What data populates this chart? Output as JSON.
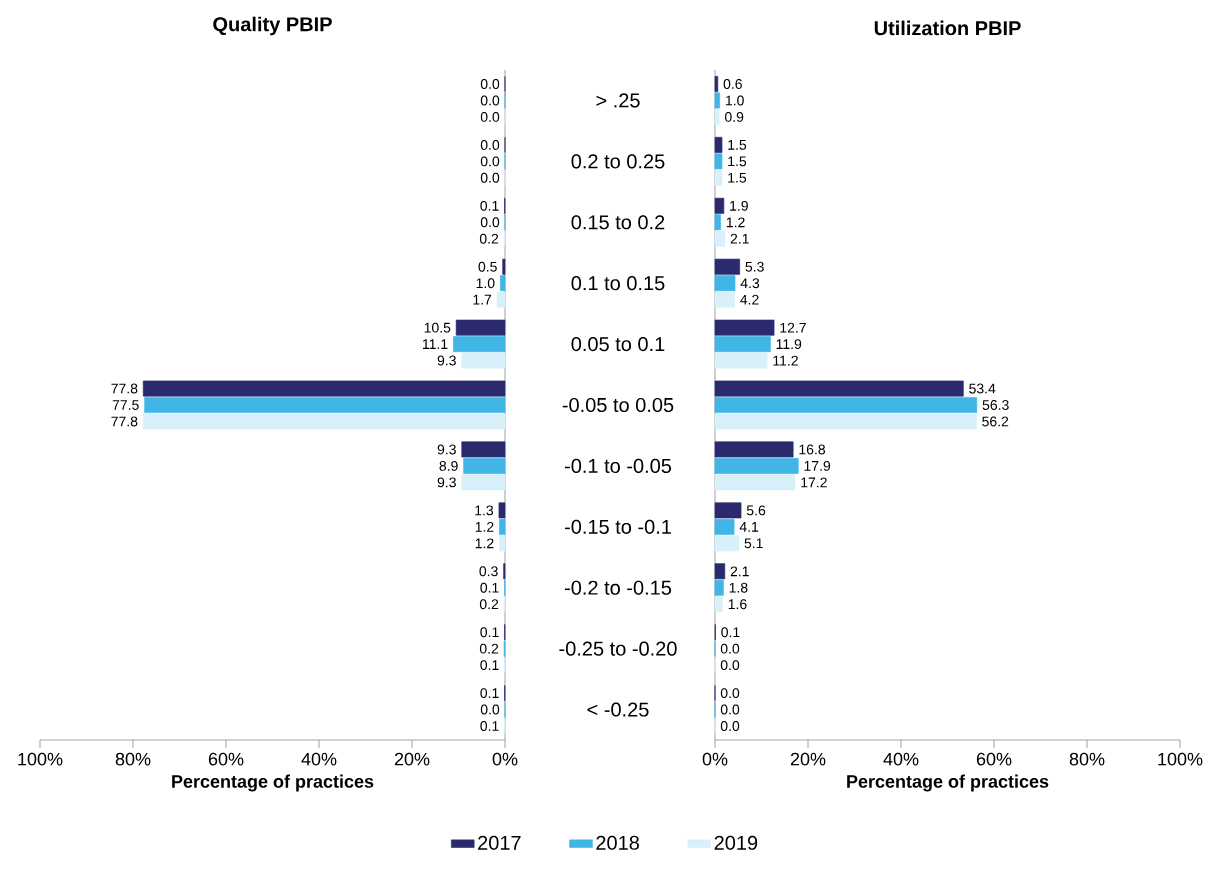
{
  "chart_data": [
    {
      "type": "bar",
      "orientation": "horizontal",
      "title": "Quality PBIP",
      "xlabel": "Percentage of practices",
      "categories": [
        "> .25",
        "0.2 to 0.25",
        "0.15 to 0.2",
        "0.1 to 0.15",
        "0.05 to 0.1",
        "-0.05 to 0.05",
        "-0.1 to -0.05",
        "-0.15 to -0.1",
        "-0.2 to -0.15",
        "-0.25 to -0.20",
        "< -0.25"
      ],
      "series": [
        {
          "name": "2017",
          "color": "#2b2a6e",
          "values": [
            0.0,
            0.0,
            0.1,
            0.5,
            10.5,
            77.8,
            9.3,
            1.3,
            0.3,
            0.1,
            0.1
          ],
          "value_labels": [
            "0.0",
            "0.0",
            "0.1",
            "0.5",
            "10.5",
            "77.8",
            "9.3",
            "1.3",
            "0.3",
            "0.1",
            "0.1"
          ]
        },
        {
          "name": "2018",
          "color": "#41b6e6",
          "values": [
            0.0,
            0.0,
            0.0,
            1.0,
            11.1,
            77.5,
            8.9,
            1.2,
            0.1,
            0.2,
            0.0
          ],
          "value_labels": [
            "0.0",
            "0.0",
            "0.0",
            "1.0",
            "11.1",
            "77.5",
            "8.9",
            "1.2",
            "0.1",
            "0.2",
            "0.0"
          ]
        },
        {
          "name": "2019",
          "color": "#d8f0fa",
          "values": [
            0.0,
            0.0,
            0.2,
            1.7,
            9.3,
            77.8,
            9.3,
            1.2,
            0.2,
            0.1,
            0.1
          ],
          "value_labels": [
            "0.0",
            "0.0",
            "0.2",
            "1.7",
            "9.3",
            "77.8",
            "9.3",
            "1.2",
            "0.2",
            "0.1",
            "0.1"
          ]
        }
      ],
      "xlim": [
        100,
        0
      ],
      "xticks": [
        {
          "value": 100,
          "label": "100%"
        },
        {
          "value": 80,
          "label": "80%"
        },
        {
          "value": 60,
          "label": "60%"
        },
        {
          "value": 40,
          "label": "40%"
        },
        {
          "value": 20,
          "label": "20%"
        },
        {
          "value": 0,
          "label": "0%"
        }
      ],
      "legend": "bottom"
    },
    {
      "type": "bar",
      "orientation": "horizontal",
      "title": "Utilization PBIP",
      "xlabel": "Percentage of practices",
      "categories": [
        null,
        null,
        null,
        null,
        null,
        null,
        null,
        null,
        null,
        null,
        null
      ],
      "series": [
        {
          "color": "#2b2a6e",
          "values": [
            0.6,
            1.5,
            1.9,
            5.3,
            12.7,
            53.4,
            16.8,
            5.6,
            2.1,
            0.1,
            0.0
          ],
          "value_labels": [
            "0.6",
            "1.5",
            "1.9",
            "5.3",
            "12.7",
            "53.4",
            "16.8",
            "5.6",
            "2.1",
            "0.1",
            "0.0"
          ]
        },
        {
          "color": "#41b6e6",
          "values": [
            1.0,
            1.5,
            1.2,
            4.3,
            11.9,
            56.3,
            17.9,
            4.1,
            1.8,
            0.0,
            0.0
          ],
          "value_labels": [
            "1.0",
            "1.5",
            "1.2",
            "4.3",
            "11.9",
            "56.3",
            "17.9",
            "4.1",
            "1.8",
            "0.0",
            "0.0"
          ]
        },
        {
          "color": "#d8f0fa",
          "values": [
            0.9,
            1.5,
            2.1,
            4.2,
            11.2,
            56.2,
            17.2,
            5.1,
            1.6,
            0.0,
            0.0
          ],
          "value_labels": [
            "0.9",
            "1.5",
            "2.1",
            "4.2",
            "11.2",
            "56.2",
            "17.2",
            "5.1",
            "1.6",
            "0.0",
            "0.0"
          ]
        }
      ],
      "xlim": [
        0,
        100
      ],
      "xticks": [
        {
          "value": 0,
          "label": "0%"
        },
        {
          "value": 20,
          "label": "20%"
        },
        {
          "value": 40,
          "label": "40%"
        },
        {
          "value": 60,
          "label": "60%"
        },
        {
          "value": 80,
          "label": "80%"
        },
        {
          "value": 100,
          "label": "100%"
        }
      ],
      "tick_labels": "x"
    }
  ]
}
